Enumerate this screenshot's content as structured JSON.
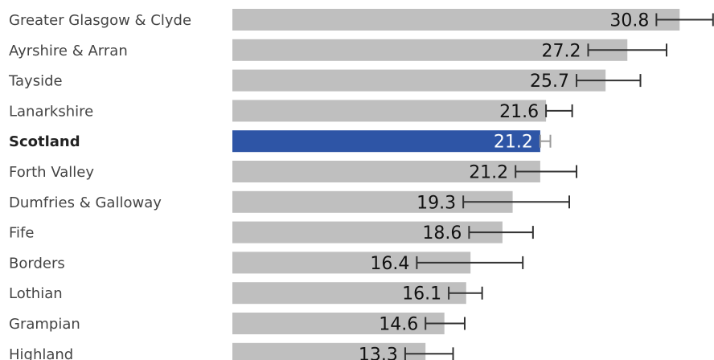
{
  "chart_data": {
    "type": "bar",
    "orientation": "horizontal",
    "categories": [
      "Greater Glasgow & Clyde",
      "Ayrshire & Arran",
      "Tayside",
      "Lanarkshire",
      "Scotland",
      "Forth Valley",
      "Dumfries & Galloway",
      "Fife",
      "Borders",
      "Lothian",
      "Grampian",
      "Highland"
    ],
    "values": [
      30.8,
      27.2,
      25.7,
      21.6,
      21.2,
      21.2,
      19.3,
      18.6,
      16.4,
      16.1,
      14.6,
      13.3
    ],
    "value_labels": [
      "30.8",
      "27.2",
      "25.7",
      "21.6",
      "21.2",
      "21.2",
      "19.3",
      "18.6",
      "16.4",
      "16.1",
      "14.6",
      "13.3"
    ],
    "error_low": [
      29.2,
      24.5,
      23.7,
      21.6,
      21.2,
      19.5,
      15.9,
      16.3,
      12.7,
      14.9,
      13.3,
      11.9
    ],
    "error_high": [
      33.1,
      29.9,
      28.1,
      23.4,
      21.9,
      23.7,
      23.2,
      20.7,
      20.0,
      17.2,
      16.0,
      15.2
    ],
    "highlight": "Scotland",
    "xlim": [
      0,
      33
    ],
    "colors": {
      "bar": "#bfbfbf",
      "highlight": "#2e55a6",
      "error": "#333333",
      "error_highlight": "#9a9a9a"
    },
    "title": "",
    "xlabel": "",
    "ylabel": "",
    "grid": false,
    "legend": "none"
  }
}
